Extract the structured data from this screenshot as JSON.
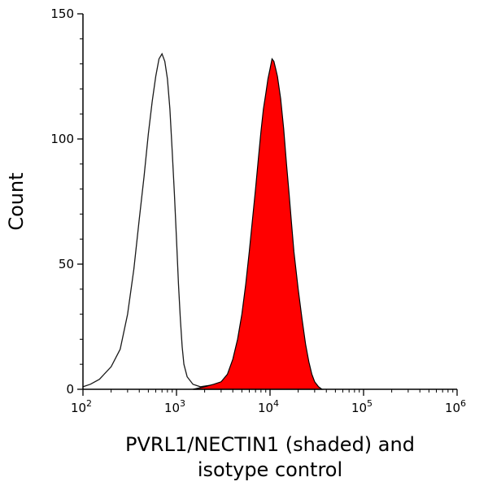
{
  "chart_data": {
    "type": "area",
    "title": "",
    "xlabel_lines": [
      "PVRL1/NECTIN1 (shaded) and",
      "isotype control"
    ],
    "ylabel": "Count",
    "x_scale": "log10",
    "xlim": [
      100,
      1000000
    ],
    "ylim": [
      0,
      150
    ],
    "x_ticks": [
      {
        "value": 100,
        "base": "10",
        "exp": "2"
      },
      {
        "value": 1000,
        "base": "10",
        "exp": "3"
      },
      {
        "value": 10000,
        "base": "10",
        "exp": "4"
      },
      {
        "value": 100000,
        "base": "10",
        "exp": "5"
      },
      {
        "value": 1000000,
        "base": "10",
        "exp": "6"
      }
    ],
    "y_ticks": [
      {
        "value": 0,
        "label": "0"
      },
      {
        "value": 50,
        "label": "50"
      },
      {
        "value": 100,
        "label": "100"
      },
      {
        "value": 150,
        "label": "150"
      }
    ],
    "series": [
      {
        "name": "isotype control",
        "style": "outline",
        "color": "#1a1a1a",
        "points": [
          [
            100,
            1
          ],
          [
            120,
            2
          ],
          [
            150,
            4
          ],
          [
            200,
            9
          ],
          [
            250,
            16
          ],
          [
            300,
            30
          ],
          [
            350,
            48
          ],
          [
            400,
            68
          ],
          [
            450,
            85
          ],
          [
            500,
            102
          ],
          [
            550,
            115
          ],
          [
            600,
            125
          ],
          [
            650,
            132
          ],
          [
            700,
            134
          ],
          [
            750,
            131
          ],
          [
            800,
            124
          ],
          [
            850,
            112
          ],
          [
            900,
            95
          ],
          [
            950,
            78
          ],
          [
            1000,
            60
          ],
          [
            1050,
            42
          ],
          [
            1100,
            28
          ],
          [
            1150,
            17
          ],
          [
            1200,
            10
          ],
          [
            1300,
            5
          ],
          [
            1500,
            2
          ],
          [
            1800,
            1
          ],
          [
            2200,
            1.5
          ],
          [
            2700,
            2
          ],
          [
            3300,
            3
          ],
          [
            4000,
            3
          ],
          [
            5000,
            2
          ],
          [
            7000,
            1
          ],
          [
            10000,
            0
          ]
        ]
      },
      {
        "name": "PVRL1/NECTIN1",
        "style": "filled",
        "color": "#ff0000",
        "outline_color": "#000000",
        "points": [
          [
            1500,
            0
          ],
          [
            2000,
            1
          ],
          [
            2500,
            2
          ],
          [
            3000,
            3
          ],
          [
            3500,
            6
          ],
          [
            4000,
            12
          ],
          [
            4500,
            20
          ],
          [
            5000,
            30
          ],
          [
            5500,
            42
          ],
          [
            6000,
            55
          ],
          [
            6500,
            68
          ],
          [
            7000,
            80
          ],
          [
            7500,
            92
          ],
          [
            8000,
            103
          ],
          [
            8500,
            112
          ],
          [
            9000,
            118
          ],
          [
            9500,
            124
          ],
          [
            10000,
            128
          ],
          [
            10500,
            132
          ],
          [
            11000,
            131
          ],
          [
            11500,
            128
          ],
          [
            12000,
            125
          ],
          [
            13000,
            116
          ],
          [
            14000,
            104
          ],
          [
            15000,
            90
          ],
          [
            16000,
            78
          ],
          [
            17000,
            66
          ],
          [
            18000,
            55
          ],
          [
            20000,
            40
          ],
          [
            22000,
            28
          ],
          [
            24000,
            18
          ],
          [
            26000,
            11
          ],
          [
            28000,
            6
          ],
          [
            30000,
            3
          ],
          [
            33000,
            1
          ],
          [
            36000,
            0
          ]
        ]
      }
    ]
  }
}
